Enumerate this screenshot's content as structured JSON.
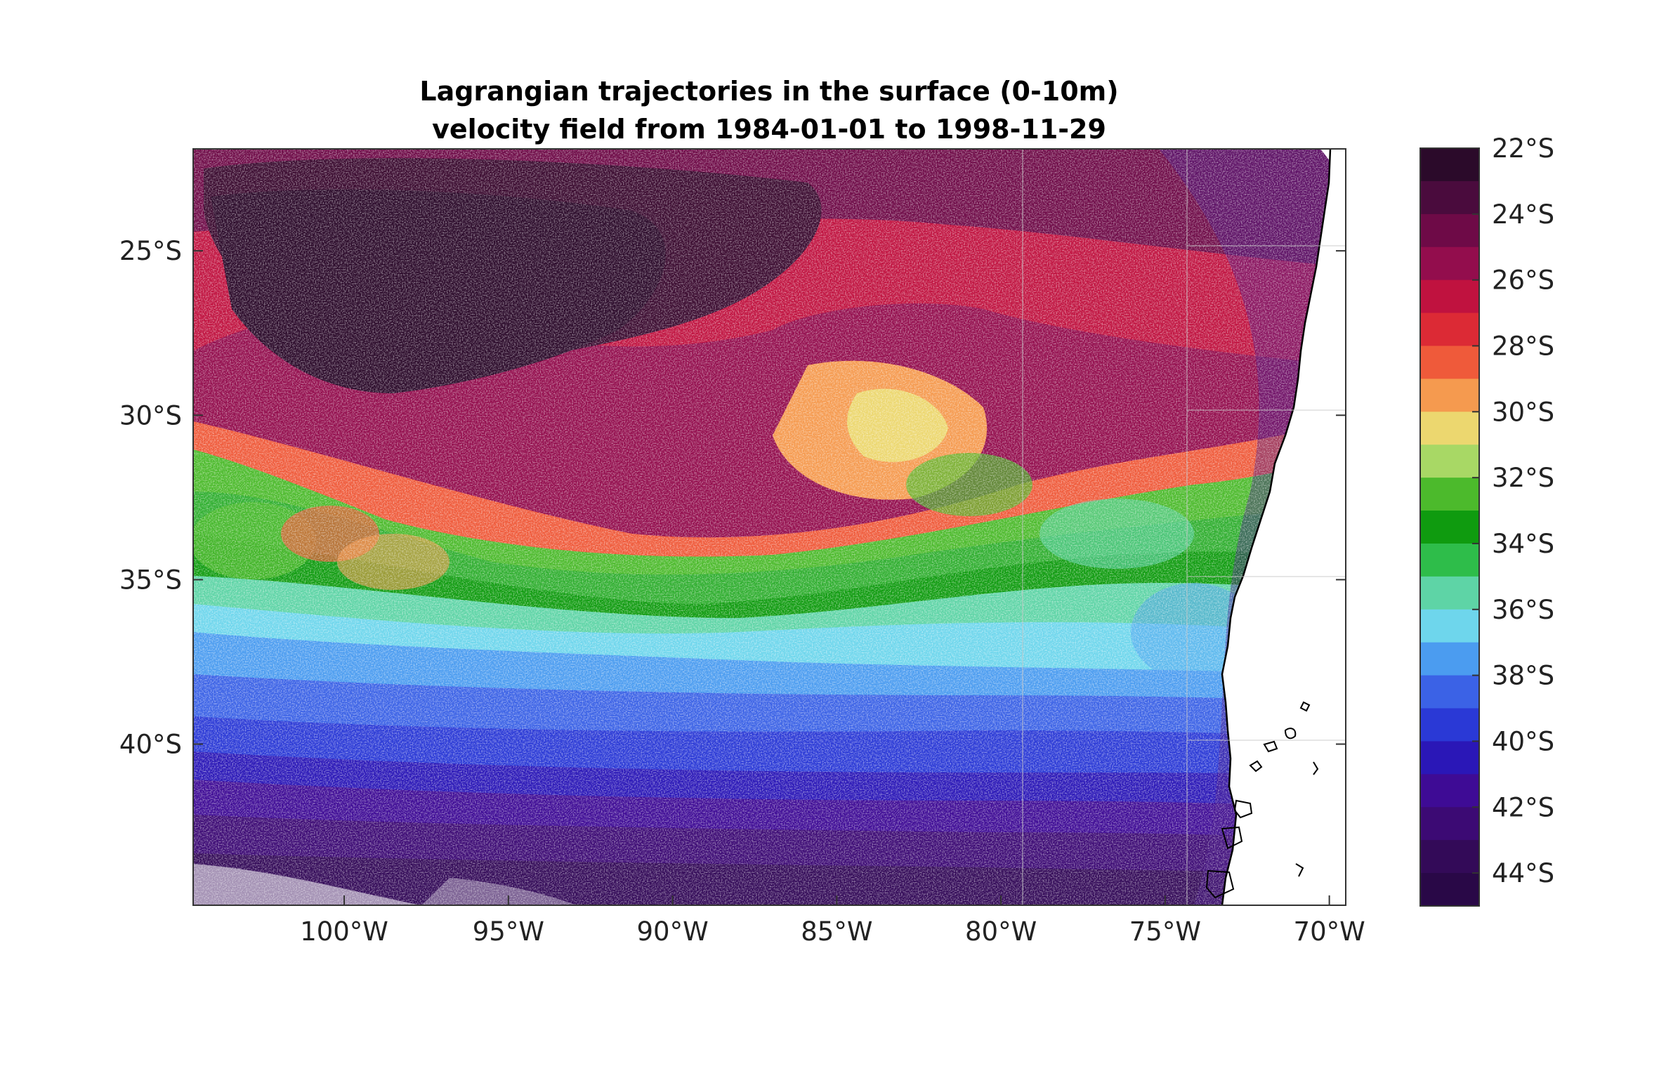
{
  "title": {
    "line1": "Lagrangian trajectories in the surface (0-10m)",
    "line2": "velocity field from 1984-01-01 to 1998-11-29"
  },
  "map": {
    "lon_range": [
      -104.6,
      -69.5
    ],
    "lat_range": [
      -44.9,
      -21.9
    ],
    "x_ticks": [
      {
        "value": -100,
        "label": "100°W"
      },
      {
        "value": -95,
        "label": "95°W"
      },
      {
        "value": -90,
        "label": "90°W"
      },
      {
        "value": -85,
        "label": "85°W"
      },
      {
        "value": -80,
        "label": "80°W"
      },
      {
        "value": -75,
        "label": "75°W"
      },
      {
        "value": -70,
        "label": "70°W"
      }
    ],
    "y_ticks": [
      {
        "value": -25,
        "label": "25°S"
      },
      {
        "value": -30,
        "label": "30°S"
      },
      {
        "value": -35,
        "label": "35°S"
      },
      {
        "value": -40,
        "label": "40°S"
      }
    ],
    "grid": true,
    "coastline": "South America (Chile)",
    "color_variable": "particle release latitude"
  },
  "colorbar": {
    "orientation": "vertical",
    "placement": "right",
    "range": [
      -45,
      -22
    ],
    "tick_labels": [
      "22°S",
      "24°S",
      "26°S",
      "28°S",
      "30°S",
      "32°S",
      "34°S",
      "36°S",
      "38°S",
      "40°S",
      "42°S",
      "44°S"
    ],
    "bands_top_to_bottom": [
      "#2b0a2a",
      "#4a0b3d",
      "#6e0a47",
      "#930d4d",
      "#c0123f",
      "#dc2a35",
      "#ef5a3a",
      "#f59a4f",
      "#ecd76f",
      "#a8d865",
      "#4cba2c",
      "#0f9b0f",
      "#2ebd4a",
      "#5ed4a6",
      "#6ed6ec",
      "#4b9cf0",
      "#3b62e6",
      "#2a39d6",
      "#2a17b7",
      "#3e0b95",
      "#3c0a74",
      "#330a58",
      "#290847"
    ]
  }
}
